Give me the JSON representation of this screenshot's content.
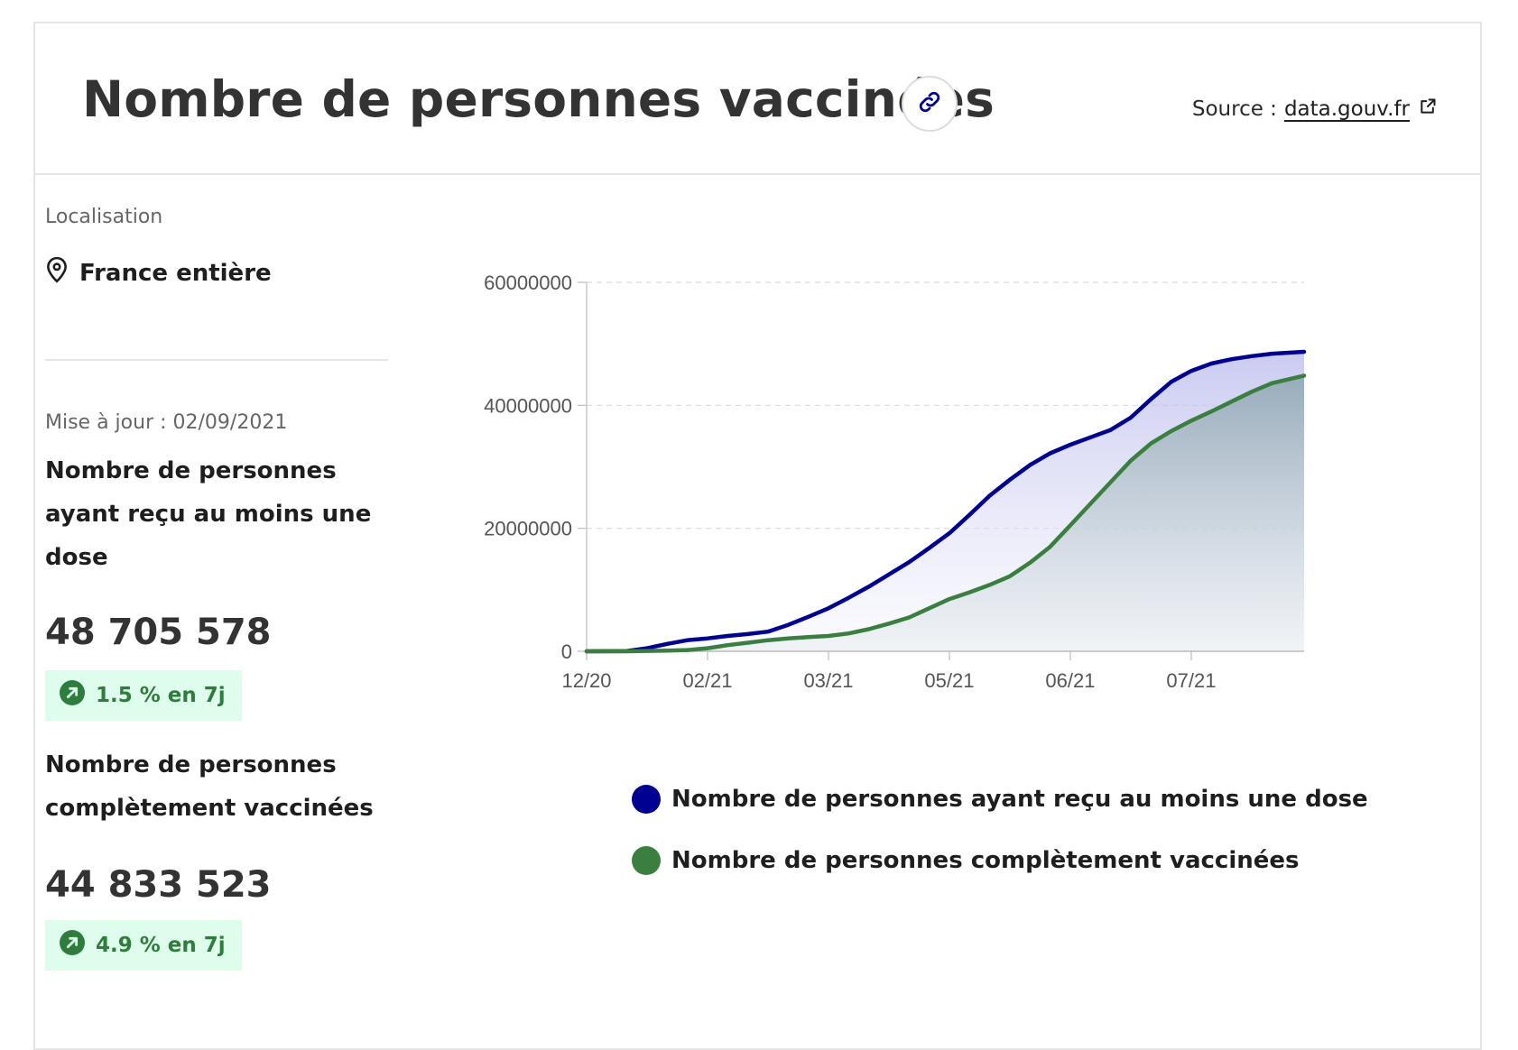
{
  "header": {
    "title": "Nombre de personnes vaccinées",
    "source_label": "Source :",
    "source_link": "data.gouv.fr"
  },
  "side": {
    "location_label": "Localisation",
    "location_value": "France entière",
    "updated": "Mise à jour : 02/09/2021",
    "kpis": [
      {
        "label": "Nombre de personnes ayant reçu au moins une dose",
        "value": "48 705 578",
        "change": "1.5 % en 7j"
      },
      {
        "label": "Nombre de personnes complètement vaccinées",
        "value": "44 833 523",
        "change": "4.9 % en 7j"
      }
    ]
  },
  "colors": {
    "series1": "#000091",
    "series2": "#3a7f3f",
    "badge_bg": "#dffdec",
    "badge_text": "#2f7d3c"
  },
  "icons": {
    "link": "link-icon",
    "external": "external-link-icon",
    "location": "map-pin-icon",
    "trend": "arrow-up-right-icon"
  },
  "chart_data": {
    "type": "area",
    "x_ticks": [
      "12/20",
      "02/21",
      "03/21",
      "05/21",
      "06/21",
      "07/21"
    ],
    "x_tick_positions": [
      0,
      60,
      120,
      180,
      240,
      300
    ],
    "y_ticks": [
      "0",
      "20000000",
      "40000000",
      "60000000"
    ],
    "ylim": [
      0,
      60000000
    ],
    "xlim": [
      0,
      356
    ],
    "grid": true,
    "legend_position": "bottom",
    "series": [
      {
        "name": "Nombre de personnes ayant reçu au moins une dose",
        "color": "#000091",
        "points": [
          [
            0,
            0
          ],
          [
            20,
            50000
          ],
          [
            30,
            500000
          ],
          [
            40,
            1200000
          ],
          [
            50,
            1800000
          ],
          [
            60,
            2100000
          ],
          [
            70,
            2500000
          ],
          [
            80,
            2800000
          ],
          [
            90,
            3200000
          ],
          [
            100,
            4300000
          ],
          [
            110,
            5600000
          ],
          [
            120,
            7000000
          ],
          [
            130,
            8700000
          ],
          [
            140,
            10500000
          ],
          [
            150,
            12500000
          ],
          [
            160,
            14500000
          ],
          [
            170,
            16800000
          ],
          [
            180,
            19200000
          ],
          [
            190,
            22200000
          ],
          [
            200,
            25300000
          ],
          [
            210,
            27900000
          ],
          [
            220,
            30300000
          ],
          [
            230,
            32200000
          ],
          [
            240,
            33600000
          ],
          [
            250,
            34800000
          ],
          [
            260,
            36000000
          ],
          [
            270,
            38000000
          ],
          [
            280,
            41000000
          ],
          [
            290,
            43800000
          ],
          [
            300,
            45600000
          ],
          [
            310,
            46800000
          ],
          [
            320,
            47500000
          ],
          [
            330,
            48000000
          ],
          [
            340,
            48400000
          ],
          [
            356,
            48705578
          ]
        ]
      },
      {
        "name": "Nombre de personnes complètement vaccinées",
        "color": "#3a7f3f",
        "points": [
          [
            0,
            0
          ],
          [
            20,
            0
          ],
          [
            40,
            100000
          ],
          [
            50,
            200000
          ],
          [
            60,
            500000
          ],
          [
            70,
            1000000
          ],
          [
            80,
            1400000
          ],
          [
            90,
            1800000
          ],
          [
            100,
            2100000
          ],
          [
            110,
            2300000
          ],
          [
            120,
            2500000
          ],
          [
            130,
            2900000
          ],
          [
            140,
            3600000
          ],
          [
            150,
            4500000
          ],
          [
            160,
            5500000
          ],
          [
            170,
            7000000
          ],
          [
            180,
            8500000
          ],
          [
            190,
            9600000
          ],
          [
            200,
            10800000
          ],
          [
            210,
            12200000
          ],
          [
            220,
            14400000
          ],
          [
            230,
            17000000
          ],
          [
            240,
            20500000
          ],
          [
            250,
            24000000
          ],
          [
            260,
            27500000
          ],
          [
            270,
            31000000
          ],
          [
            280,
            33800000
          ],
          [
            290,
            35800000
          ],
          [
            300,
            37500000
          ],
          [
            310,
            39000000
          ],
          [
            320,
            40600000
          ],
          [
            330,
            42200000
          ],
          [
            340,
            43600000
          ],
          [
            356,
            44833523
          ]
        ]
      }
    ]
  }
}
